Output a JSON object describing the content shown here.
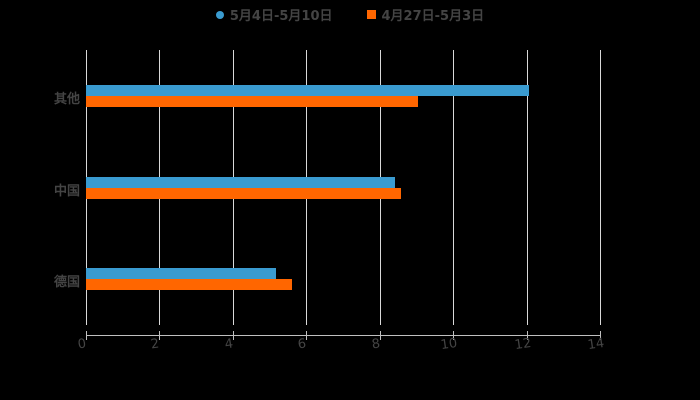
{
  "legend": [
    {
      "label": "5月4日-5月10日",
      "color": "#3a9bd0",
      "shape": "circle"
    },
    {
      "label": "4月27日-5月3日",
      "color": "#ff6600",
      "shape": "square"
    }
  ],
  "chart_data": {
    "type": "bar",
    "orientation": "horizontal",
    "title": "",
    "categories": [
      "其他",
      "中国",
      "德国"
    ],
    "series": [
      {
        "name": "5月4日-5月10日",
        "color": "#3a9bd0",
        "values": [
          12.07,
          8.41,
          5.17
        ]
      },
      {
        "name": "4月27日-5月3日",
        "color": "#ff6600",
        "values": [
          9.03,
          8.57,
          5.6
        ]
      }
    ],
    "xlabel": "",
    "ylabel": "",
    "xlim": [
      0,
      14
    ],
    "xticks": [
      "0",
      "2",
      "4",
      "6",
      "8",
      "10",
      "12",
      "14"
    ],
    "grid": true,
    "legend_position": "top"
  }
}
